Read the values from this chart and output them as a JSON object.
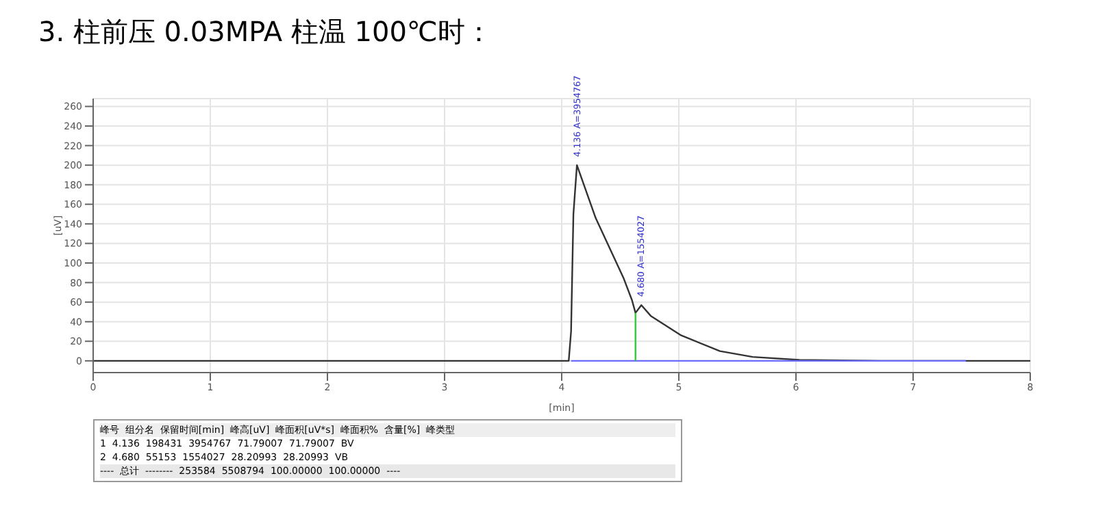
{
  "chart_data": {
    "type": "line",
    "title": "3.  柱前压 0.03MPA  柱温 100℃时：",
    "xlabel": "[min]",
    "ylabel": "[uV]",
    "xlim": [
      0,
      8
    ],
    "xticks": [
      0,
      1,
      2,
      3,
      4,
      5,
      6,
      7,
      8
    ],
    "ylim": [
      -12,
      268
    ],
    "yticks": [
      0,
      20,
      40,
      60,
      80,
      100,
      120,
      140,
      160,
      180,
      200,
      220,
      240,
      260
    ],
    "grid": true,
    "marker": "none",
    "line_style": "solid",
    "series": [
      {
        "color": "#333333",
        "x": [
          0,
          4.06,
          4.08,
          4.1,
          4.13,
          4.29,
          4.41,
          4.53,
          4.6,
          4.63,
          4.68,
          4.76,
          5.02,
          5.35,
          5.63,
          6.03,
          6.72,
          8
        ],
        "values": [
          0,
          0,
          30,
          150,
          200,
          146,
          115,
          84,
          62,
          49,
          57,
          46,
          26,
          10,
          4,
          1,
          0,
          0
        ]
      },
      {
        "color": "#6b6bff",
        "x": [
          4.08,
          7.45
        ],
        "values": [
          0,
          0
        ]
      },
      {
        "color": "#33cc33",
        "x": [
          4.63,
          4.63
        ],
        "values": [
          0,
          49
        ]
      }
    ],
    "annotations": [
      {
        "text": "4.136 A=3954767",
        "x": 4.136,
        "y": 200
      },
      {
        "text": "4.680 A=1554027",
        "x": 4.68,
        "y": 57
      },
      "峰号  组分名  保留时间[min]  峰高[uV]  峰面积[uV*s]  峰面积%  含量[%]  峰类型",
      "1  4.136  198431  3954767  71.79007  71.79007  BV",
      "2  4.680  55153  1554027  28.20993  28.20993  VB",
      "----  总计  --------  253584  5508794  100.00000  100.00000  ----"
    ]
  }
}
